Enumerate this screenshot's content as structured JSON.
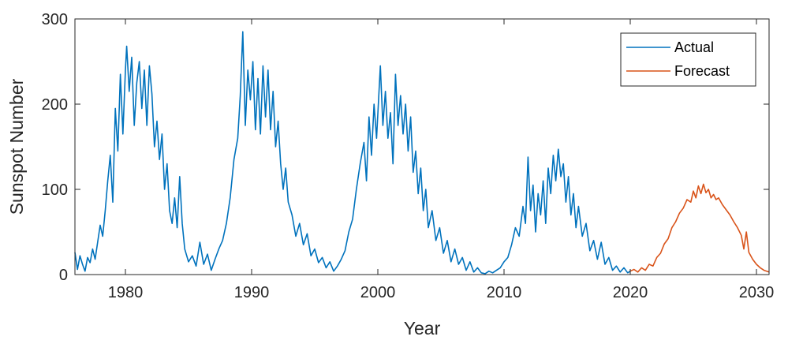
{
  "chart_data": {
    "type": "line",
    "title": "",
    "xlabel": "Year",
    "ylabel": "Sunspot Number",
    "xlim": [
      1976,
      2031
    ],
    "ylim": [
      0,
      300
    ],
    "x_ticks": [
      1980,
      1990,
      2000,
      2010,
      2020,
      2030
    ],
    "y_ticks": [
      0,
      100,
      200,
      300
    ],
    "grid": false,
    "legend_position": "top-right",
    "series": [
      {
        "name": "Actual",
        "color": "#0072BD",
        "points": [
          [
            1976.0,
            26
          ],
          [
            1976.2,
            6
          ],
          [
            1976.4,
            22
          ],
          [
            1976.6,
            12
          ],
          [
            1976.8,
            4
          ],
          [
            1977.0,
            20
          ],
          [
            1977.2,
            14
          ],
          [
            1977.4,
            30
          ],
          [
            1977.6,
            18
          ],
          [
            1977.8,
            38
          ],
          [
            1978.0,
            58
          ],
          [
            1978.2,
            45
          ],
          [
            1978.4,
            75
          ],
          [
            1978.6,
            110
          ],
          [
            1978.8,
            140
          ],
          [
            1979.0,
            85
          ],
          [
            1979.2,
            195
          ],
          [
            1979.4,
            145
          ],
          [
            1979.6,
            235
          ],
          [
            1979.8,
            165
          ],
          [
            1980.0,
            240
          ],
          [
            1980.1,
            268
          ],
          [
            1980.3,
            215
          ],
          [
            1980.5,
            255
          ],
          [
            1980.7,
            175
          ],
          [
            1980.9,
            225
          ],
          [
            1981.1,
            250
          ],
          [
            1981.3,
            195
          ],
          [
            1981.5,
            240
          ],
          [
            1981.7,
            175
          ],
          [
            1981.9,
            245
          ],
          [
            1982.1,
            212
          ],
          [
            1982.3,
            150
          ],
          [
            1982.5,
            180
          ],
          [
            1982.7,
            135
          ],
          [
            1982.9,
            165
          ],
          [
            1983.1,
            100
          ],
          [
            1983.3,
            130
          ],
          [
            1983.5,
            75
          ],
          [
            1983.7,
            60
          ],
          [
            1983.9,
            90
          ],
          [
            1984.1,
            55
          ],
          [
            1984.3,
            115
          ],
          [
            1984.5,
            60
          ],
          [
            1984.7,
            30
          ],
          [
            1985.0,
            15
          ],
          [
            1985.3,
            22
          ],
          [
            1985.6,
            10
          ],
          [
            1985.9,
            38
          ],
          [
            1986.2,
            12
          ],
          [
            1986.5,
            24
          ],
          [
            1986.8,
            5
          ],
          [
            1987.1,
            18
          ],
          [
            1987.4,
            30
          ],
          [
            1987.7,
            40
          ],
          [
            1988.0,
            60
          ],
          [
            1988.3,
            90
          ],
          [
            1988.6,
            135
          ],
          [
            1988.9,
            160
          ],
          [
            1989.1,
            210
          ],
          [
            1989.3,
            285
          ],
          [
            1989.5,
            175
          ],
          [
            1989.7,
            240
          ],
          [
            1989.9,
            205
          ],
          [
            1990.1,
            250
          ],
          [
            1990.3,
            170
          ],
          [
            1990.5,
            230
          ],
          [
            1990.7,
            165
          ],
          [
            1990.9,
            245
          ],
          [
            1991.1,
            185
          ],
          [
            1991.3,
            240
          ],
          [
            1991.5,
            170
          ],
          [
            1991.7,
            215
          ],
          [
            1991.9,
            150
          ],
          [
            1992.1,
            180
          ],
          [
            1992.3,
            130
          ],
          [
            1992.5,
            100
          ],
          [
            1992.7,
            125
          ],
          [
            1992.9,
            85
          ],
          [
            1993.2,
            70
          ],
          [
            1993.5,
            45
          ],
          [
            1993.8,
            60
          ],
          [
            1994.1,
            35
          ],
          [
            1994.4,
            48
          ],
          [
            1994.7,
            22
          ],
          [
            1995.0,
            30
          ],
          [
            1995.3,
            14
          ],
          [
            1995.6,
            20
          ],
          [
            1995.9,
            8
          ],
          [
            1996.2,
            15
          ],
          [
            1996.5,
            4
          ],
          [
            1996.8,
            10
          ],
          [
            1997.1,
            18
          ],
          [
            1997.4,
            28
          ],
          [
            1997.7,
            50
          ],
          [
            1998.0,
            65
          ],
          [
            1998.3,
            100
          ],
          [
            1998.6,
            130
          ],
          [
            1998.9,
            155
          ],
          [
            1999.1,
            110
          ],
          [
            1999.3,
            185
          ],
          [
            1999.5,
            140
          ],
          [
            1999.7,
            200
          ],
          [
            1999.9,
            160
          ],
          [
            2000.2,
            245
          ],
          [
            2000.4,
            175
          ],
          [
            2000.6,
            215
          ],
          [
            2000.8,
            160
          ],
          [
            2001.0,
            190
          ],
          [
            2001.2,
            130
          ],
          [
            2001.4,
            235
          ],
          [
            2001.6,
            175
          ],
          [
            2001.8,
            210
          ],
          [
            2002.0,
            165
          ],
          [
            2002.2,
            200
          ],
          [
            2002.4,
            145
          ],
          [
            2002.6,
            185
          ],
          [
            2002.8,
            120
          ],
          [
            2003.0,
            145
          ],
          [
            2003.2,
            95
          ],
          [
            2003.4,
            125
          ],
          [
            2003.6,
            75
          ],
          [
            2003.8,
            100
          ],
          [
            2004.0,
            55
          ],
          [
            2004.3,
            75
          ],
          [
            2004.6,
            40
          ],
          [
            2004.9,
            55
          ],
          [
            2005.2,
            25
          ],
          [
            2005.5,
            40
          ],
          [
            2005.8,
            15
          ],
          [
            2006.1,
            30
          ],
          [
            2006.4,
            12
          ],
          [
            2006.7,
            20
          ],
          [
            2007.0,
            5
          ],
          [
            2007.3,
            15
          ],
          [
            2007.6,
            3
          ],
          [
            2007.9,
            8
          ],
          [
            2008.2,
            2
          ],
          [
            2008.5,
            1
          ],
          [
            2008.8,
            4
          ],
          [
            2009.1,
            2
          ],
          [
            2009.4,
            5
          ],
          [
            2009.7,
            8
          ],
          [
            2010.0,
            15
          ],
          [
            2010.3,
            20
          ],
          [
            2010.6,
            35
          ],
          [
            2010.9,
            55
          ],
          [
            2011.2,
            45
          ],
          [
            2011.5,
            80
          ],
          [
            2011.7,
            60
          ],
          [
            2011.9,
            138
          ],
          [
            2012.1,
            75
          ],
          [
            2012.3,
            105
          ],
          [
            2012.5,
            50
          ],
          [
            2012.7,
            95
          ],
          [
            2012.9,
            70
          ],
          [
            2013.1,
            110
          ],
          [
            2013.3,
            60
          ],
          [
            2013.5,
            125
          ],
          [
            2013.7,
            95
          ],
          [
            2013.9,
            140
          ],
          [
            2014.1,
            110
          ],
          [
            2014.3,
            147
          ],
          [
            2014.5,
            115
          ],
          [
            2014.7,
            130
          ],
          [
            2014.9,
            85
          ],
          [
            2015.1,
            115
          ],
          [
            2015.3,
            70
          ],
          [
            2015.5,
            95
          ],
          [
            2015.7,
            55
          ],
          [
            2015.9,
            80
          ],
          [
            2016.2,
            45
          ],
          [
            2016.5,
            60
          ],
          [
            2016.8,
            28
          ],
          [
            2017.1,
            40
          ],
          [
            2017.4,
            18
          ],
          [
            2017.7,
            38
          ],
          [
            2018.0,
            12
          ],
          [
            2018.3,
            20
          ],
          [
            2018.6,
            5
          ],
          [
            2018.9,
            10
          ],
          [
            2019.2,
            3
          ],
          [
            2019.5,
            8
          ],
          [
            2019.8,
            2
          ],
          [
            2020.0,
            4
          ]
        ]
      },
      {
        "name": "Forecast",
        "color": "#D95319",
        "points": [
          [
            2020.0,
            4
          ],
          [
            2020.3,
            6
          ],
          [
            2020.6,
            3
          ],
          [
            2020.9,
            8
          ],
          [
            2021.2,
            5
          ],
          [
            2021.5,
            12
          ],
          [
            2021.8,
            10
          ],
          [
            2022.1,
            20
          ],
          [
            2022.4,
            25
          ],
          [
            2022.7,
            36
          ],
          [
            2023.0,
            42
          ],
          [
            2023.3,
            55
          ],
          [
            2023.6,
            62
          ],
          [
            2023.9,
            72
          ],
          [
            2024.2,
            78
          ],
          [
            2024.5,
            88
          ],
          [
            2024.8,
            85
          ],
          [
            2025.0,
            98
          ],
          [
            2025.2,
            90
          ],
          [
            2025.4,
            104
          ],
          [
            2025.6,
            95
          ],
          [
            2025.8,
            106
          ],
          [
            2026.0,
            96
          ],
          [
            2026.2,
            100
          ],
          [
            2026.4,
            90
          ],
          [
            2026.6,
            94
          ],
          [
            2026.8,
            88
          ],
          [
            2027.0,
            90
          ],
          [
            2027.3,
            82
          ],
          [
            2027.6,
            76
          ],
          [
            2027.9,
            70
          ],
          [
            2028.2,
            62
          ],
          [
            2028.5,
            55
          ],
          [
            2028.8,
            46
          ],
          [
            2029.0,
            30
          ],
          [
            2029.2,
            50
          ],
          [
            2029.4,
            26
          ],
          [
            2029.7,
            18
          ],
          [
            2030.0,
            12
          ],
          [
            2030.3,
            8
          ],
          [
            2030.6,
            5
          ],
          [
            2031.0,
            3
          ]
        ]
      }
    ]
  }
}
